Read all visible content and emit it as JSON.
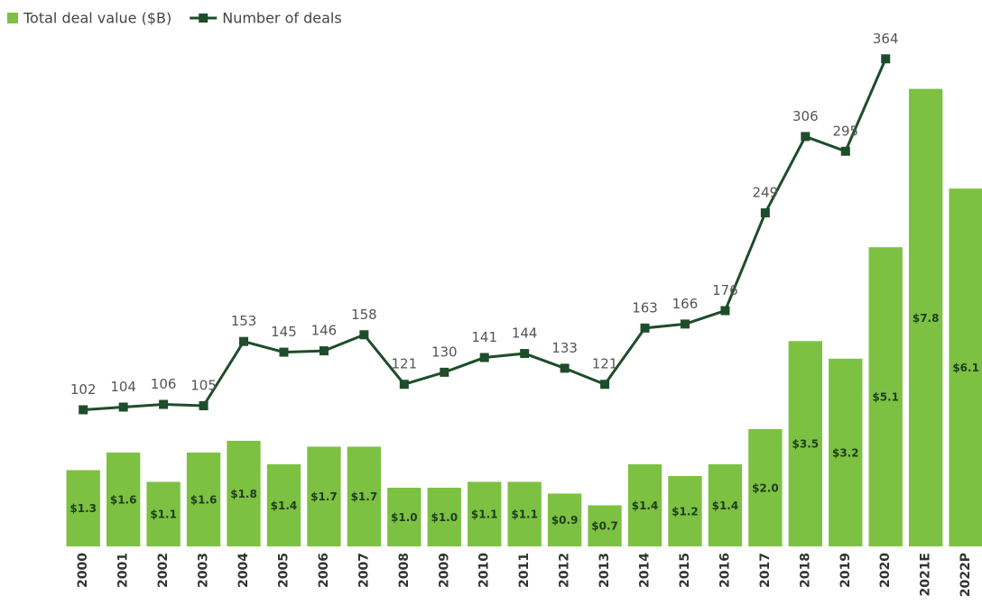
{
  "chart_data": {
    "type": "combo",
    "categories": [
      "2000",
      "2001",
      "2002",
      "2003",
      "2004",
      "2005",
      "2006",
      "2007",
      "2008",
      "2009",
      "2010",
      "2011",
      "2012",
      "2013",
      "2014",
      "2015",
      "2016",
      "2017",
      "2018",
      "2019",
      "2020",
      "2021E",
      "2022P"
    ],
    "series": [
      {
        "name": "Total deal value ($B)",
        "type": "bar",
        "color": "#7dc142",
        "values": [
          1.3,
          1.6,
          1.1,
          1.6,
          1.8,
          1.4,
          1.7,
          1.7,
          1.0,
          1.0,
          1.1,
          1.1,
          0.9,
          0.7,
          1.4,
          1.2,
          1.4,
          2.0,
          3.5,
          3.2,
          5.1,
          7.8,
          6.1
        ],
        "value_labels": [
          "$1.3",
          "$1.6",
          "$1.1",
          "$1.6",
          "$1.8",
          "$1.4",
          "$1.7",
          "$1.7",
          "$1.0",
          "$1.0",
          "$1.1",
          "$1.1",
          "$0.9",
          "$0.7",
          "$1.4",
          "$1.2",
          "$1.4",
          "$2.0",
          "$3.5",
          "$3.2",
          "$5.1",
          "$7.8",
          "$6.1"
        ]
      },
      {
        "name": "Number of deals",
        "type": "line",
        "color": "#1e4d2b",
        "axis": "y2",
        "values": [
          102,
          104,
          106,
          105,
          153,
          145,
          146,
          158,
          121,
          130,
          141,
          144,
          133,
          121,
          163,
          166,
          176,
          249,
          306,
          295,
          364,
          null,
          null
        ]
      }
    ],
    "ylim": [
      0,
      8.7
    ],
    "y2lim": [
      0,
      381
    ],
    "legend": "top-left"
  }
}
